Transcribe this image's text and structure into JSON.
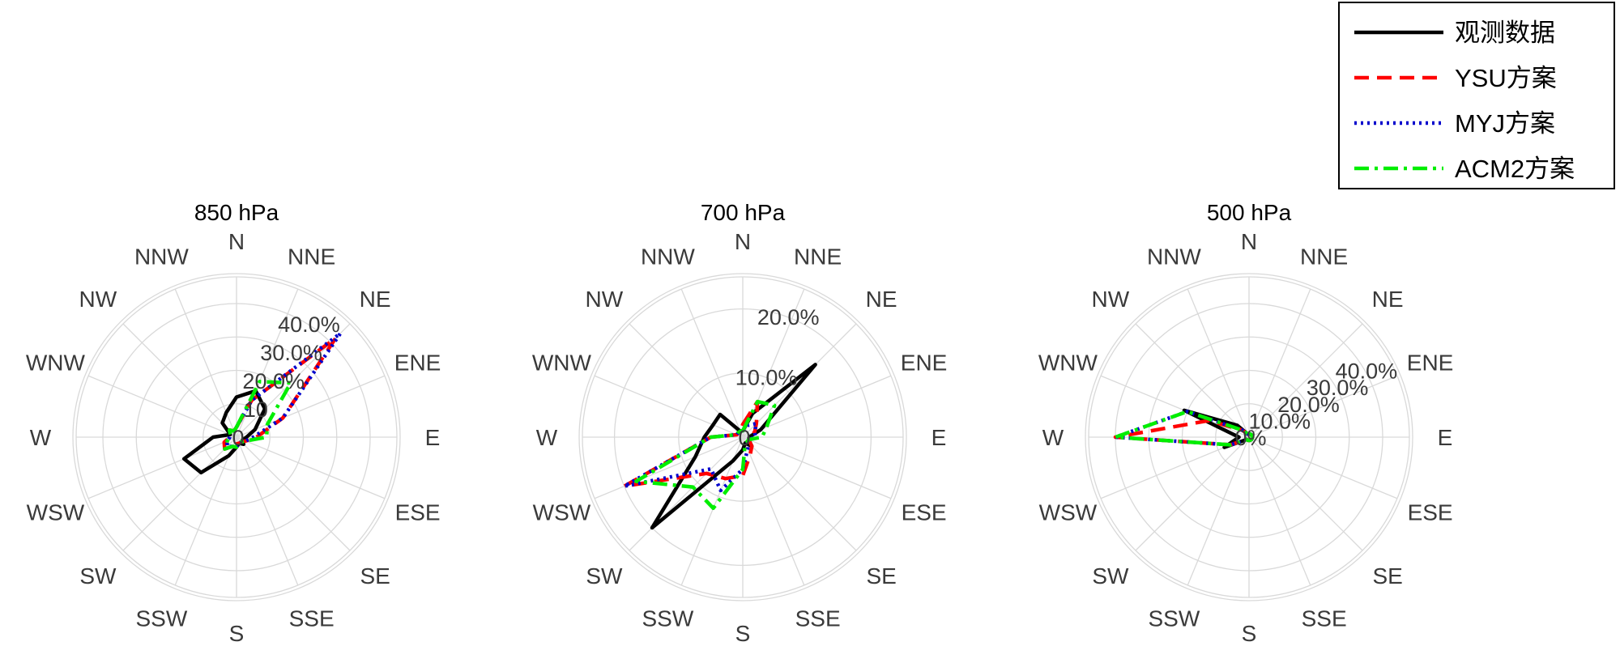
{
  "chart_data": {
    "type": "polar-line",
    "directions": [
      "N",
      "NNE",
      "NE",
      "ENE",
      "E",
      "ESE",
      "SE",
      "SSE",
      "S",
      "SSW",
      "SW",
      "WSW",
      "W",
      "WNW",
      "NW",
      "NNW"
    ],
    "legend": {
      "placement": "top-right",
      "entries": [
        {
          "name": "观测数据",
          "color": "#000000",
          "dash": "solid"
        },
        {
          "name": "YSU方案",
          "color": "#ff0000",
          "dash": "dashed"
        },
        {
          "name": "MYJ方案",
          "color": "#0000cc",
          "dash": "dotted"
        },
        {
          "name": "ACM2方案",
          "color": "#00ee00",
          "dash": "dashdot"
        }
      ]
    },
    "panels": [
      {
        "title": "850 hPa",
        "rmax": 48,
        "rticks": [
          0,
          10,
          20,
          30,
          40
        ],
        "rtick_labels": [
          "0",
          "10",
          "20.0%",
          "30.0%",
          "40.0%"
        ],
        "series": [
          {
            "name": "观测数据",
            "values": [
              12,
              15,
              12,
              6,
              3,
              2,
              3,
              2,
              3,
              6,
              15,
              17,
              7,
              2,
              6,
              8
            ]
          },
          {
            "name": "YSU方案",
            "values": [
              3,
              12,
              42,
              15,
              6,
              3,
              2,
              2,
              2,
              3,
              5,
              4,
              2,
              2,
              3,
              2
            ]
          },
          {
            "name": "MYJ方案",
            "values": [
              3,
              12,
              44,
              15,
              5,
              3,
              2,
              2,
              3,
              3,
              4,
              3,
              2,
              2,
              3,
              2
            ]
          },
          {
            "name": "ACM2方案",
            "values": [
              3,
              18,
              23,
              10,
              9,
              3,
              2,
              2,
              3,
              3,
              5,
              3,
              2,
              2,
              3,
              2
            ]
          }
        ]
      },
      {
        "title": "700 hPa",
        "rmax": 25,
        "rticks": [
          0,
          10,
          20
        ],
        "rtick_labels": [
          "0",
          "10.0%",
          "20.0%"
        ],
        "series": [
          {
            "name": "观测数据",
            "values": [
              1,
              4,
              16,
              3,
              1,
              1,
              2,
              1,
              2,
              4,
              20,
              8,
              6,
              5,
              5,
              1
            ]
          },
          {
            "name": "YSU方案",
            "values": [
              2,
              6,
              3,
              2,
              1,
              1,
              2,
              3,
              6,
              7,
              8,
              20,
              5,
              1,
              1,
              1
            ]
          },
          {
            "name": "MYJ方案",
            "values": [
              1,
              2,
              3,
              2,
              2,
              1,
              1,
              2,
              5,
              9,
              7,
              20,
              5,
              1,
              1,
              1
            ]
          },
          {
            "name": "ACM2方案",
            "values": [
              1,
              6,
              7,
              4,
              3,
              1,
              1,
              1,
              5,
              12,
              11,
              18,
              5,
              1,
              1,
              1
            ]
          }
        ]
      },
      {
        "title": "500 hPa",
        "rmax": 48,
        "rticks": [
          0,
          10,
          20,
          30,
          40
        ],
        "rtick_labels": [
          "0%",
          "10.0%",
          "20.0%",
          "30.0%",
          "40.0%"
        ],
        "series": [
          {
            "name": "观测数据",
            "values": [
              1,
              1,
              1,
              1,
              1,
              1,
              1,
              1,
              1,
              1,
              1,
              8,
              3,
              21,
              5,
              1
            ]
          },
          {
            "name": "YSU方案",
            "values": [
              1,
              1,
              1,
              1,
              1,
              1,
              1,
              1,
              1,
              1,
              1,
              6,
              40,
              13,
              3,
              1
            ]
          },
          {
            "name": "MYJ方案",
            "values": [
              1,
              1,
              1,
              1,
              1,
              1,
              1,
              1,
              1,
              1,
              1,
              6,
              40,
              20,
              3,
              1
            ]
          },
          {
            "name": "ACM2方案",
            "values": [
              1,
              1,
              1,
              1,
              1,
              1,
              1,
              1,
              1,
              1,
              1,
              6,
              40,
              20,
              3,
              1
            ]
          }
        ]
      }
    ]
  }
}
